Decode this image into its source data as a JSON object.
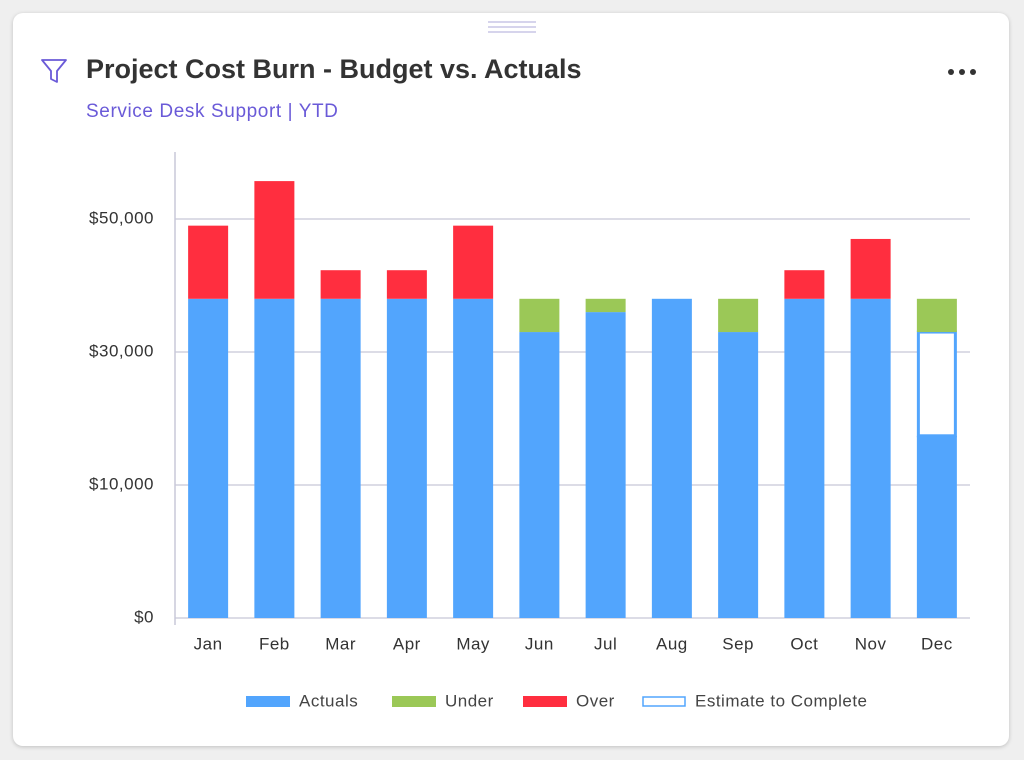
{
  "chart_data": {
    "type": "stacked-bar",
    "title": "Project Cost Burn - Budget vs. Actuals",
    "subtitle": "Service Desk Support  |  YTD",
    "categories": [
      "Jan",
      "Feb",
      "Mar",
      "Apr",
      "May",
      "Jun",
      "Jul",
      "Aug",
      "Sep",
      "Oct",
      "Nov",
      "Dec"
    ],
    "series": [
      {
        "name": "Actuals",
        "color": "#52a5fd",
        "values": [
          38000,
          38000,
          38000,
          38000,
          38000,
          33000,
          36000,
          38000,
          33000,
          38000,
          38000,
          17400
        ]
      },
      {
        "name": "Estimate to Complete",
        "color": "#ffffff",
        "stroke": "#52a5fd",
        "values": [
          null,
          null,
          null,
          null,
          null,
          null,
          null,
          null,
          null,
          null,
          null,
          15600
        ]
      },
      {
        "name": "Under",
        "color": "#9bc857",
        "values": [
          null,
          null,
          null,
          null,
          null,
          5000,
          2000,
          null,
          5000,
          null,
          null,
          5000
        ]
      },
      {
        "name": "Over",
        "color": "#ff2e3f",
        "values": [
          11000,
          17700,
          4300,
          4300,
          11000,
          null,
          null,
          null,
          null,
          4300,
          9000,
          null
        ]
      }
    ],
    "legend_order": [
      0,
      2,
      3,
      1
    ],
    "ylim": [
      0,
      60000
    ],
    "yticks": [
      {
        "value": 0,
        "label": "$0"
      },
      {
        "value": 10000,
        "label": "$10,000"
      },
      {
        "value": 30000,
        "label": "$30,000"
      },
      {
        "value": 50000,
        "label": "$50,000"
      }
    ],
    "grid": true
  }
}
